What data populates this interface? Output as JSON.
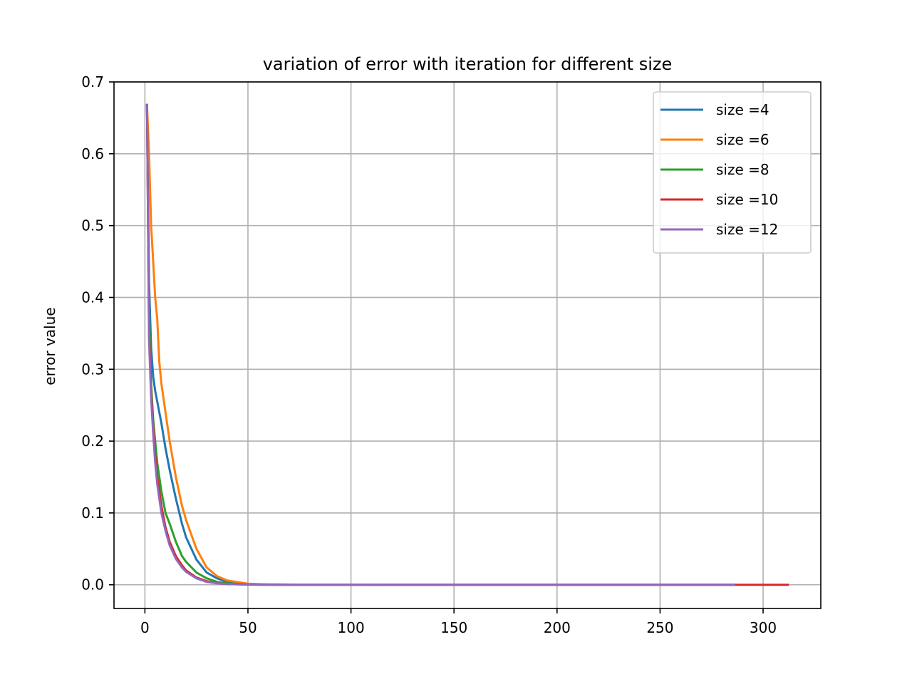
{
  "chart_data": {
    "type": "line",
    "title": "variation of error with iteration for different size",
    "xlabel": "",
    "ylabel": "error value",
    "xlim": [
      -15,
      328
    ],
    "ylim": [
      -0.033,
      0.7
    ],
    "x_ticks": [
      0,
      50,
      100,
      150,
      200,
      250,
      300
    ],
    "y_ticks": [
      0.0,
      0.1,
      0.2,
      0.3,
      0.4,
      0.5,
      0.6,
      0.7
    ],
    "x_tick_labels": [
      "0",
      "50",
      "100",
      "150",
      "200",
      "250",
      "300"
    ],
    "y_tick_labels": [
      "0.0",
      "0.1",
      "0.2",
      "0.3",
      "0.4",
      "0.5",
      "0.6",
      "0.7"
    ],
    "grid": true,
    "legend_position": "top-right",
    "series": [
      {
        "name": "size =4",
        "color": "#1f77b4",
        "x": [
          1,
          2,
          3,
          4,
          5,
          6,
          8,
          10,
          12,
          15,
          18,
          20,
          25,
          30,
          35,
          40,
          50,
          60,
          80,
          120,
          200,
          250,
          286
        ],
        "y": [
          0.668,
          0.42,
          0.33,
          0.29,
          0.27,
          0.255,
          0.225,
          0.19,
          0.16,
          0.12,
          0.085,
          0.066,
          0.035,
          0.017,
          0.009,
          0.004,
          0.001,
          0.0003,
          0.0001,
          0.0,
          0.0,
          0.0,
          0.0
        ]
      },
      {
        "name": "size =6",
        "color": "#ff7f0e",
        "x": [
          1,
          2,
          3,
          4,
          5,
          6,
          7,
          8,
          10,
          12,
          15,
          18,
          20,
          25,
          30,
          35,
          40,
          50,
          60,
          80,
          120,
          200,
          250,
          286
        ],
        "y": [
          0.668,
          0.6,
          0.5,
          0.45,
          0.4,
          0.37,
          0.31,
          0.28,
          0.24,
          0.2,
          0.15,
          0.11,
          0.09,
          0.05,
          0.024,
          0.012,
          0.006,
          0.0015,
          0.0005,
          0.0001,
          0.0,
          0.0,
          0.0,
          0.0
        ]
      },
      {
        "name": "size =8",
        "color": "#2ca02c",
        "x": [
          1,
          2,
          3,
          4,
          5,
          6,
          8,
          10,
          12,
          15,
          18,
          20,
          25,
          30,
          35,
          40,
          50,
          60,
          80,
          120,
          200,
          250,
          286
        ],
        "y": [
          0.668,
          0.38,
          0.28,
          0.23,
          0.2,
          0.17,
          0.13,
          0.1,
          0.085,
          0.06,
          0.04,
          0.032,
          0.017,
          0.009,
          0.004,
          0.002,
          0.0005,
          0.0001,
          0.0,
          0.0,
          0.0,
          0.0,
          0.0
        ]
      },
      {
        "name": "size =10",
        "color": "#d62728",
        "x": [
          1,
          2,
          3,
          4,
          5,
          6,
          8,
          10,
          12,
          15,
          18,
          20,
          25,
          30,
          35,
          40,
          50,
          60,
          80,
          120,
          200,
          250,
          300,
          312
        ],
        "y": [
          0.668,
          0.35,
          0.27,
          0.22,
          0.18,
          0.15,
          0.11,
          0.08,
          0.06,
          0.04,
          0.027,
          0.02,
          0.01,
          0.005,
          0.002,
          0.001,
          0.0002,
          0.0,
          0.0,
          0.0,
          0.0,
          0.0,
          0.0,
          0.0
        ]
      },
      {
        "name": "size =12",
        "color": "#9467bd",
        "x": [
          1,
          2,
          3,
          4,
          5,
          6,
          8,
          10,
          12,
          15,
          18,
          20,
          25,
          30,
          35,
          40,
          50,
          60,
          80,
          120,
          200,
          250,
          286
        ],
        "y": [
          0.668,
          0.34,
          0.26,
          0.21,
          0.17,
          0.14,
          0.1,
          0.075,
          0.055,
          0.036,
          0.024,
          0.018,
          0.009,
          0.004,
          0.002,
          0.001,
          0.0002,
          0.0,
          0.0,
          0.0,
          0.0,
          0.0,
          0.0
        ]
      }
    ]
  }
}
